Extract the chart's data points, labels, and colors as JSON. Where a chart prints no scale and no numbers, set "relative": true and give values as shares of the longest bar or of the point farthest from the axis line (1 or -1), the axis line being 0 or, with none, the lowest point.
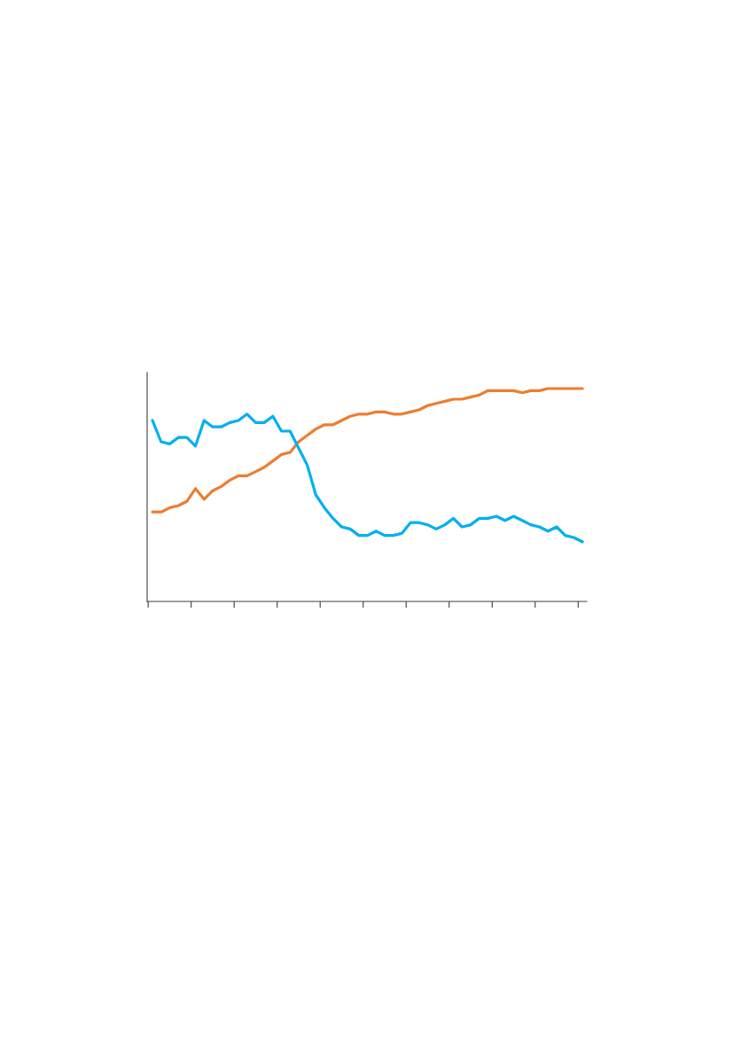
{
  "chart_data": {
    "type": "line",
    "relative": true,
    "grid": false,
    "marker": "none",
    "line_style": "solid",
    "categories": [
      null,
      null,
      null,
      null,
      null,
      null,
      null,
      null,
      null,
      null,
      null,
      null,
      null,
      null,
      null,
      null,
      null,
      null,
      null,
      null,
      null,
      null,
      null,
      null,
      null,
      null,
      null,
      null,
      null,
      null,
      null,
      null,
      null,
      null,
      null,
      null,
      null,
      null,
      null,
      null,
      null,
      null,
      null,
      null,
      null,
      null,
      null,
      null,
      null,
      null,
      null
    ],
    "series": [
      {
        "color": "#ed7d31",
        "values": [
          0.42,
          0.42,
          0.44,
          0.45,
          0.47,
          0.53,
          0.48,
          0.52,
          0.54,
          0.57,
          0.59,
          0.59,
          0.61,
          0.63,
          0.66,
          0.69,
          0.7,
          0.75,
          0.78,
          0.81,
          0.83,
          0.83,
          0.85,
          0.87,
          0.88,
          0.88,
          0.89,
          0.89,
          0.88,
          0.88,
          0.89,
          0.9,
          0.92,
          0.93,
          0.94,
          0.95,
          0.95,
          0.96,
          0.97,
          0.99,
          0.99,
          0.99,
          0.99,
          0.98,
          0.99,
          0.99,
          1.0,
          1.0,
          1.0,
          1.0,
          1.0
        ]
      },
      {
        "color": "#00b0f0",
        "values": [
          0.85,
          0.75,
          0.74,
          0.77,
          0.77,
          0.73,
          0.85,
          0.82,
          0.82,
          0.84,
          0.85,
          0.88,
          0.84,
          0.84,
          0.87,
          0.8,
          0.8,
          0.72,
          0.64,
          0.5,
          0.44,
          0.39,
          0.35,
          0.34,
          0.31,
          0.31,
          0.33,
          0.31,
          0.31,
          0.32,
          0.37,
          0.37,
          0.36,
          0.34,
          0.36,
          0.39,
          0.35,
          0.36,
          0.39,
          0.39,
          0.4,
          0.38,
          0.4,
          0.38,
          0.36,
          0.35,
          0.33,
          0.35,
          0.31,
          0.3,
          0.28
        ]
      }
    ]
  }
}
